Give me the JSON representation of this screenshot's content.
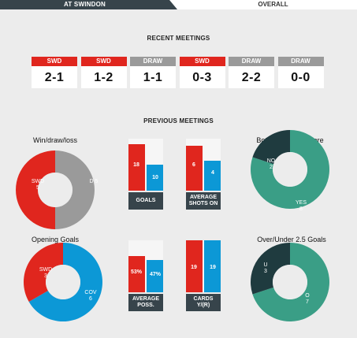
{
  "tabs": {
    "active": "AT SWINDON",
    "other": "OVERALL"
  },
  "colors": {
    "swd": "#e0261e",
    "draw": "#9a9a9a",
    "cov": "#0c98d6",
    "header": "#37444b",
    "teal": "#3a9e86",
    "dark": "#1f3b3f",
    "empty": "#f6f6f6"
  },
  "recent": {
    "title": "RECENT MEETINGS",
    "items": [
      {
        "label": "SWD",
        "score": "2-1",
        "type": "swd"
      },
      {
        "label": "SWD",
        "score": "1-2",
        "type": "swd"
      },
      {
        "label": "DRAW",
        "score": "1-1",
        "type": "draw"
      },
      {
        "label": "SWD",
        "score": "0-3",
        "type": "swd"
      },
      {
        "label": "DRAW",
        "score": "2-2",
        "type": "draw"
      },
      {
        "label": "DRAW",
        "score": "0-0",
        "type": "draw"
      }
    ]
  },
  "previous": {
    "title": "PREVIOUS MEETINGS",
    "wdl": {
      "title": "Win/draw/loss",
      "swd_label": "SWD",
      "swd_value": 5,
      "d_label": "D",
      "d_value": 5
    },
    "goals": {
      "label": "GOALS",
      "home": 18,
      "away": 10,
      "max": 20
    },
    "shots": {
      "label1": "AVERAGE",
      "label2": "SHOTS ON",
      "home": 6,
      "away": 4,
      "max": 7
    },
    "btts": {
      "title": "Both Teams To Score",
      "no_label": "NO",
      "no_value": 2,
      "yes_label": "YES",
      "yes_value": 8
    },
    "opening": {
      "title": "Opening Goals",
      "swd_label": "SWD",
      "swd_value": 3,
      "cov_label": "COV",
      "cov_value": 6
    },
    "poss": {
      "label1": "AVERAGE",
      "label2": "POSS.",
      "home": "53%",
      "away": "47%",
      "home_num": 53,
      "away_num": 47,
      "max": 100
    },
    "cards": {
      "label1": "CARDS",
      "label2": "Y/(R)",
      "home": 19,
      "away": 19,
      "max": 19
    },
    "overunder": {
      "title": "Over/Under 2.5 Goals",
      "u_label": "U",
      "u_value": 3,
      "o_label": "O",
      "o_value": 7
    }
  }
}
